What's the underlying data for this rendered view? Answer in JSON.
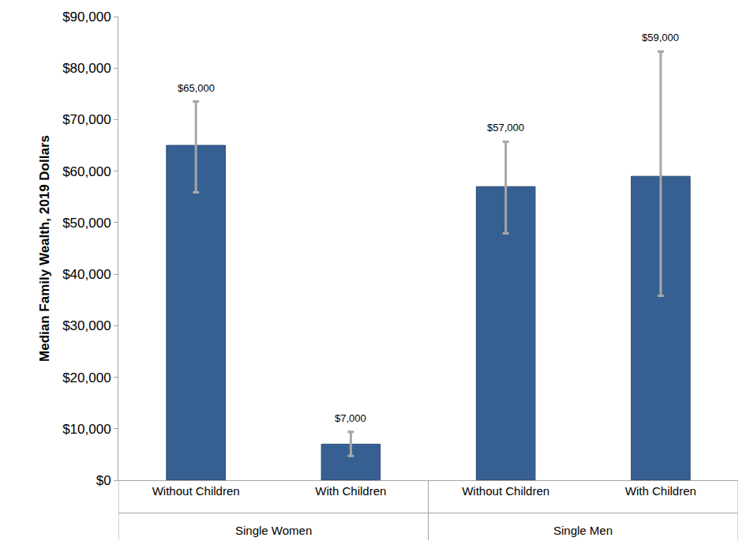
{
  "chart_data": {
    "type": "bar",
    "y_label": "Median Family Wealth, 2019 Dollars",
    "categories": [
      "Without Children",
      "With Children",
      "Without Children",
      "With Children"
    ],
    "groups": [
      "Single Women",
      "Single Women",
      "Single Men",
      "Single Men"
    ],
    "values": [
      65000,
      7000,
      57000,
      59000
    ],
    "value_labels": [
      "$65,000",
      "$7,000",
      "$57,000",
      "$59,000"
    ],
    "error_low": [
      55900,
      4700,
      47900,
      35800
    ],
    "error_high": [
      73500,
      9400,
      65700,
      83200
    ],
    "color": "#376092",
    "ylim": [
      0,
      90000
    ],
    "yticks": [
      {
        "value": 0,
        "label": "$0"
      },
      {
        "value": 10000,
        "label": "$10,000"
      },
      {
        "value": 20000,
        "label": "$20,000"
      },
      {
        "value": 30000,
        "label": "$30,000"
      },
      {
        "value": 40000,
        "label": "$40,000"
      },
      {
        "value": 50000,
        "label": "$50,000"
      },
      {
        "value": 60000,
        "label": "$60,000"
      },
      {
        "value": 70000,
        "label": "$70,000"
      },
      {
        "value": 80000,
        "label": "$80,000"
      },
      {
        "value": 90000,
        "label": "$90,000"
      }
    ],
    "grid": false,
    "data_labels": true
  }
}
